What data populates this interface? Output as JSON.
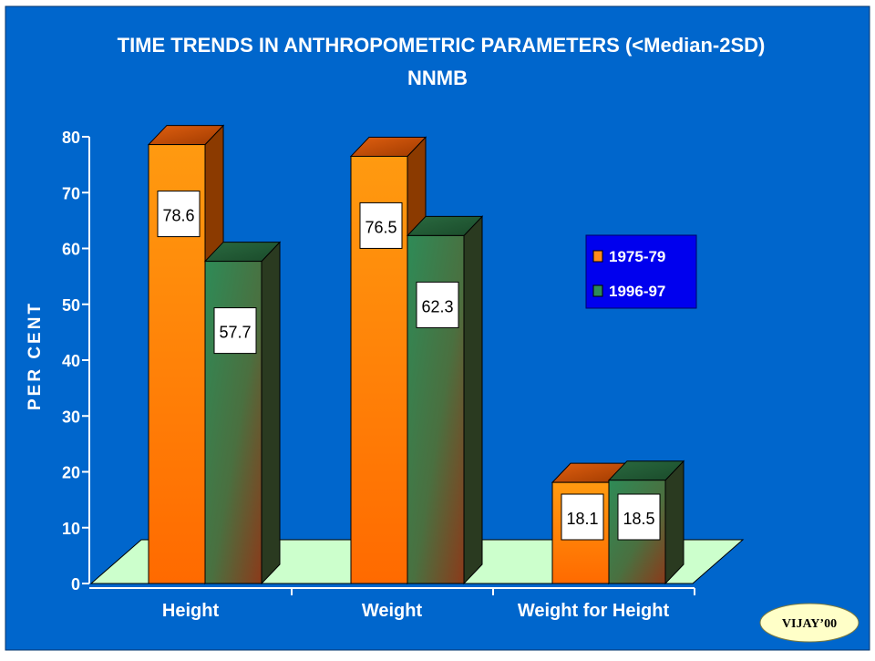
{
  "chart_data": {
    "type": "bar",
    "title": "TIME TRENDS IN ANTHROPOMETRIC PARAMETERS (<Median-2SD)",
    "subtitle": "NNMB",
    "ylabel": "PER CENT",
    "xlabel": "",
    "ylim": [
      0,
      80
    ],
    "yticks": [
      "0",
      "10",
      "20",
      "30",
      "40",
      "50",
      "60",
      "70",
      "80"
    ],
    "categories": [
      "Height",
      "Weight",
      "Weight for Height"
    ],
    "series": [
      {
        "name": "1975-79",
        "values": [
          78.6,
          76.5,
          18.1
        ],
        "labels": [
          "78.6",
          "76.5",
          "18.1"
        ],
        "color": "#ff8c1a"
      },
      {
        "name": "1996-97",
        "values": [
          57.7,
          62.3,
          18.5
        ],
        "labels": [
          "57.7",
          "62.3",
          "18.5"
        ],
        "color": "#2e8b57"
      }
    ],
    "legend_position": "right",
    "grid": false,
    "floor_color": "#ccffcc",
    "background_color": "#0066cc"
  },
  "watermark": "VIJAY’00"
}
